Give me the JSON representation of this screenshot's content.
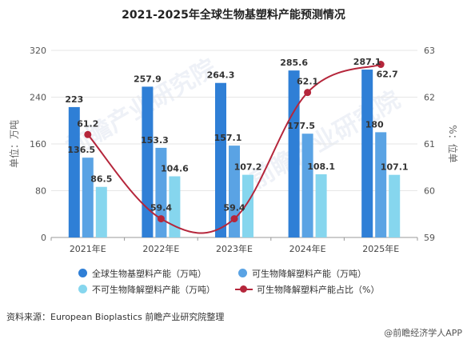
{
  "chart_data": {
    "type": "bar",
    "title": "2021-2025年全球生物基塑料产能预测情况",
    "categories": [
      "2021年E",
      "2022年E",
      "2023年E",
      "2024年E",
      "2025年E"
    ],
    "ylabel": "单位：万吨",
    "y2label": "%：位单",
    "ylim": [
      0,
      320
    ],
    "yticks": [
      0,
      80,
      160,
      240,
      320
    ],
    "y2lim": [
      59,
      63
    ],
    "y2ticks": [
      59,
      60,
      61,
      62,
      63
    ],
    "series": [
      {
        "name": "全球生物基塑料产能（万吨）",
        "type": "bar",
        "axis": "left",
        "color": "#2f7fd6",
        "values": [
          223,
          257.9,
          264.3,
          285.6,
          287.1
        ]
      },
      {
        "name": "可生物降解塑料产能（万吨）",
        "type": "bar",
        "axis": "left",
        "color": "#5aa3e4",
        "values": [
          136.5,
          153.3,
          157.1,
          177.5,
          180
        ]
      },
      {
        "name": "不可生物降解塑料产能（万吨）",
        "type": "bar",
        "axis": "left",
        "color": "#86d6ee",
        "values": [
          86.5,
          104.6,
          107.2,
          108.1,
          107.1
        ]
      },
      {
        "name": "可生物降解塑料产能占比（%）",
        "type": "line",
        "axis": "right",
        "color": "#b5263b",
        "values": [
          61.2,
          59.4,
          59.4,
          62.1,
          62.7
        ]
      }
    ]
  },
  "source": "资料来源：European Bioplastics 前瞻产业研究院整理",
  "brand": "@前瞻经济学人APP",
  "watermark": "前瞻产业研究院"
}
